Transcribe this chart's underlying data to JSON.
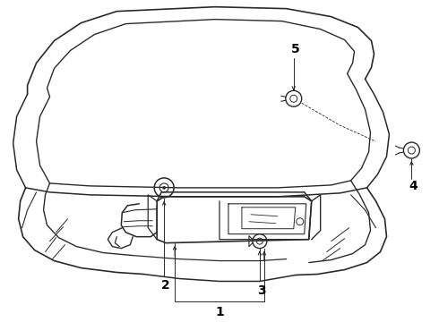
{
  "background_color": "#ffffff",
  "line_color": "#2a2a2a",
  "label_color": "#000000",
  "fig_width": 4.9,
  "fig_height": 3.6,
  "dpi": 100,
  "label_fontsize": 10
}
